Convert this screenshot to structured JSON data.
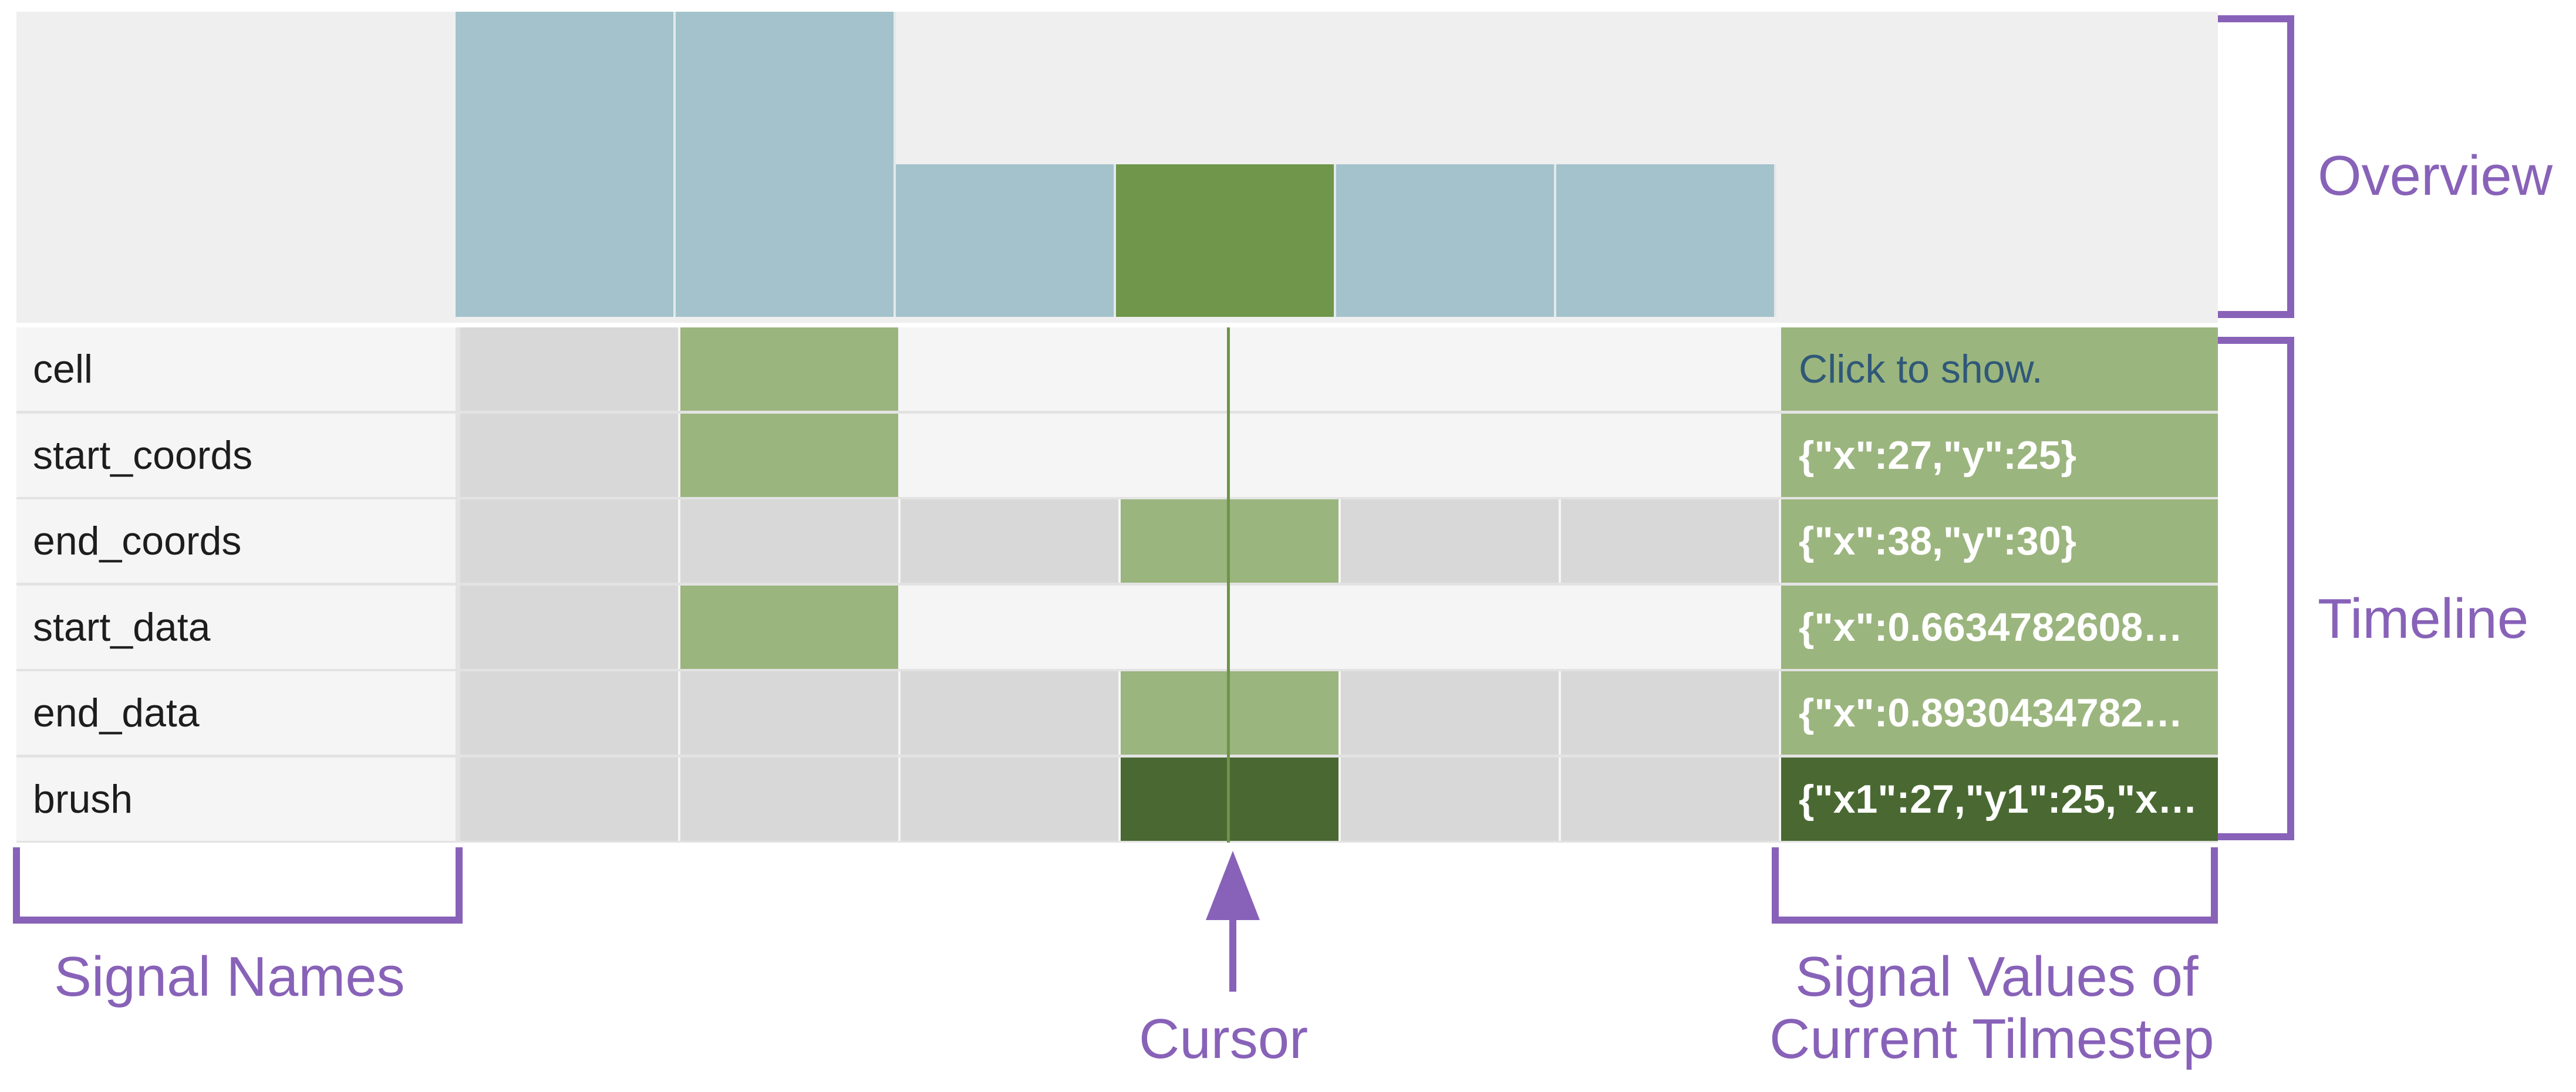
{
  "colors": {
    "overview_bar": "#a3c2cb",
    "overview_selected": "#6f964a",
    "cell_empty": "#d8d8d8",
    "cell_active": "#9bb57e",
    "cell_dark": "#4a6932",
    "value_bg": "#9bb57e",
    "value_dark": "#4a6932",
    "annotation": "#8862b8"
  },
  "overview": {
    "bars": [
      {
        "level": 1.0,
        "selected": false
      },
      {
        "level": 1.0,
        "selected": false
      },
      {
        "level": 0.5,
        "selected": false
      },
      {
        "level": 0.5,
        "selected": true
      },
      {
        "level": 0.5,
        "selected": false
      },
      {
        "level": 0.5,
        "selected": false
      }
    ]
  },
  "timeline": {
    "rows": [
      {
        "name": "cell",
        "cells": [
          "empty",
          "active",
          "none",
          "none",
          "none",
          "none"
        ],
        "value": "Click to show.",
        "value_style": "link"
      },
      {
        "name": "start_coords",
        "cells": [
          "empty",
          "active",
          "none",
          "none",
          "none",
          "none"
        ],
        "value": "{\"x\":27,\"y\":25}",
        "value_style": "normal"
      },
      {
        "name": "end_coords",
        "cells": [
          "empty",
          "empty",
          "empty",
          "active",
          "empty",
          "empty"
        ],
        "value": "{\"x\":38,\"y\":30}",
        "value_style": "normal"
      },
      {
        "name": "start_data",
        "cells": [
          "empty",
          "active",
          "none",
          "none",
          "none",
          "none"
        ],
        "value": "{\"x\":0.6634782608…",
        "value_style": "normal"
      },
      {
        "name": "end_data",
        "cells": [
          "empty",
          "empty",
          "empty",
          "active",
          "empty",
          "empty"
        ],
        "value": "{\"x\":0.8930434782…",
        "value_style": "normal"
      },
      {
        "name": "brush",
        "cells": [
          "empty",
          "empty",
          "empty",
          "dark",
          "empty",
          "empty"
        ],
        "value": "{\"x1\":27,\"y1\":25,\"x…",
        "value_style": "dark"
      }
    ]
  },
  "annotations": {
    "overview": "Overview",
    "timeline": "Timeline",
    "signal_names": "Signal Names",
    "cursor": "Cursor",
    "signal_values_line1": "Signal Values of",
    "signal_values_line2": "Current Tilmestep"
  }
}
